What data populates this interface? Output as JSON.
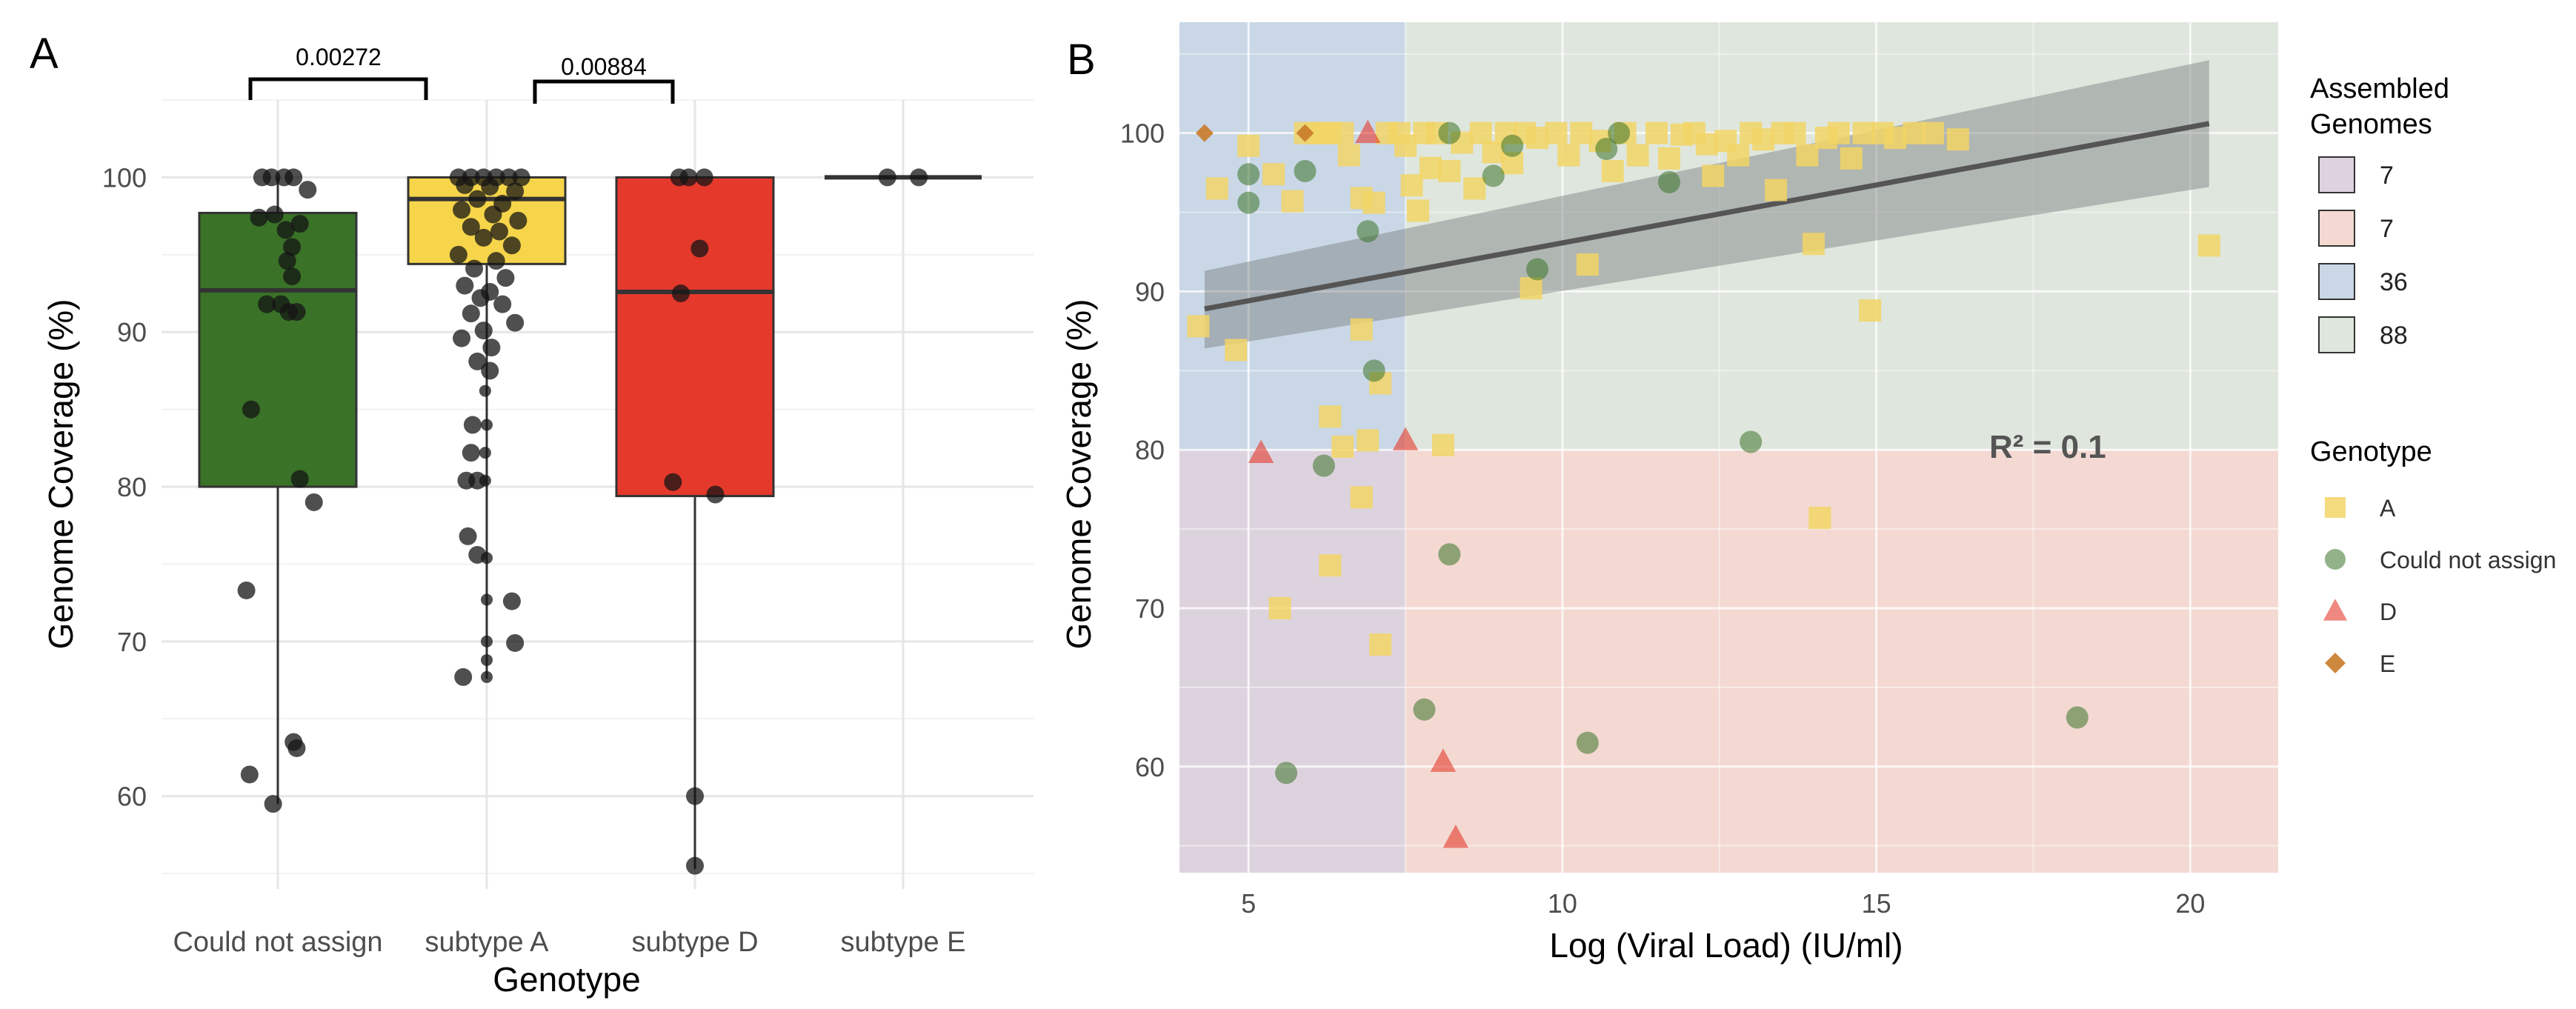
{
  "panel_a": {
    "label": "A",
    "chart_data": {
      "type": "box",
      "xlabel": "Genotype",
      "ylabel": "Genome Coverage (%)",
      "ylim": [
        54,
        105
      ],
      "yticks": [
        60,
        70,
        80,
        90,
        100
      ],
      "categories": [
        "Could not assign",
        "subtype A",
        "subtype D",
        "subtype E"
      ],
      "colors": [
        "#3a7228",
        "#f7d54a",
        "#e5392c",
        "#ffffff"
      ],
      "boxes": [
        {
          "q1": 80.0,
          "median": 92.7,
          "q3": 97.7,
          "lower": 59.5,
          "upper": 100
        },
        {
          "q1": 94.4,
          "median": 98.6,
          "q3": 100,
          "lower": 67.6,
          "upper": 100
        },
        {
          "q1": 79.4,
          "median": 92.6,
          "q3": 100,
          "lower": 55.3,
          "upper": 100
        },
        {
          "q1": 100,
          "median": 100,
          "q3": 100,
          "lower": 100,
          "upper": 100
        }
      ],
      "points": [
        [
          [
            100,
            -0.1
          ],
          [
            100,
            -0.04
          ],
          [
            100,
            0.04
          ],
          [
            100,
            0.1
          ],
          [
            99.2,
            0.19
          ],
          [
            97.6,
            -0.02
          ],
          [
            97.4,
            -0.12
          ],
          [
            97,
            0.14
          ],
          [
            96.6,
            0.05
          ],
          [
            95.5,
            0.09
          ],
          [
            94.6,
            0.06
          ],
          [
            93.6,
            0.09
          ],
          [
            91.8,
            -0.07
          ],
          [
            91.8,
            0.02
          ],
          [
            91.3,
            0.07
          ],
          [
            91.3,
            0.12
          ],
          [
            85,
            -0.17
          ],
          [
            80.5,
            0.14
          ],
          [
            79,
            0.23
          ],
          [
            73.3,
            -0.2
          ],
          [
            63.5,
            0.1
          ],
          [
            63.1,
            0.12
          ],
          [
            61.4,
            -0.18
          ],
          [
            59.5,
            -0.03
          ]
        ],
        [
          [
            100,
            -0.18
          ],
          [
            100,
            -0.1
          ],
          [
            100,
            -0.02
          ],
          [
            100,
            0.06
          ],
          [
            100,
            0.14
          ],
          [
            100,
            0.22
          ],
          [
            99.5,
            -0.14
          ],
          [
            99.4,
            0.02
          ],
          [
            99.1,
            0.18
          ],
          [
            98.6,
            -0.06
          ],
          [
            98.3,
            0.1
          ],
          [
            97.9,
            -0.16
          ],
          [
            97.6,
            0.04
          ],
          [
            97.2,
            0.2
          ],
          [
            96.8,
            -0.1
          ],
          [
            96.5,
            0.08
          ],
          [
            96.1,
            -0.02
          ],
          [
            95.6,
            0.16
          ],
          [
            95,
            -0.18
          ],
          [
            94.6,
            0.06
          ],
          [
            94.1,
            -0.08
          ],
          [
            93.5,
            0.12
          ],
          [
            93,
            -0.14
          ],
          [
            92.6,
            0.02
          ],
          [
            92.2,
            -0.04
          ],
          [
            91.8,
            0.1
          ],
          [
            91.2,
            -0.1
          ],
          [
            90.6,
            0.18
          ],
          [
            90.1,
            -0.02
          ],
          [
            89.6,
            -0.16
          ],
          [
            89,
            0.03
          ],
          [
            88.1,
            -0.06
          ],
          [
            87.5,
            0.02
          ],
          [
            86.2,
            -0.01
          ],
          [
            84,
            -0.09
          ],
          [
            84,
            0.0
          ],
          [
            82.2,
            -0.1
          ],
          [
            82.2,
            -0.01
          ],
          [
            80.4,
            -0.13
          ],
          [
            80.4,
            -0.06
          ],
          [
            80.4,
            -0.01
          ],
          [
            76.8,
            -0.12
          ],
          [
            75.6,
            -0.06
          ],
          [
            75.4,
            0.0
          ],
          [
            72.7,
            0.0
          ],
          [
            72.6,
            0.16
          ],
          [
            70,
            0.0
          ],
          [
            69.9,
            0.18
          ],
          [
            68.8,
            0.0
          ],
          [
            67.7,
            -0.15
          ],
          [
            67.7,
            0.0
          ]
        ],
        [
          [
            100,
            -0.1
          ],
          [
            100,
            -0.04
          ],
          [
            100,
            0.06
          ],
          [
            95.4,
            0.03
          ],
          [
            92.5,
            -0.09
          ],
          [
            80.3,
            -0.14
          ],
          [
            79.5,
            0.13
          ],
          [
            60,
            0.0
          ],
          [
            55.5,
            0.0
          ]
        ],
        [
          [
            100,
            -0.1
          ],
          [
            100,
            0.1
          ]
        ]
      ],
      "pvalues": [
        "0.00272",
        "0.00884"
      ]
    }
  },
  "panel_b": {
    "label": "B",
    "chart_data": {
      "type": "scatter",
      "xlabel": "Log (Viral Load) (IU/ml)",
      "ylabel": "Genome Coverage (%)",
      "xlim": [
        3.9,
        21.4
      ],
      "ylim": [
        53.3,
        107
      ],
      "xticks": [
        5,
        10,
        15,
        20
      ],
      "yticks": [
        60,
        70,
        80,
        90,
        100
      ],
      "regions": [
        {
          "x": [
            3.9,
            7.5
          ],
          "y": [
            80,
            107
          ],
          "color": "#c9d7e6"
        },
        {
          "x": [
            7.5,
            21.4
          ],
          "y": [
            80,
            107
          ],
          "color": "#dfe6dd"
        },
        {
          "x": [
            3.9,
            7.5
          ],
          "y": [
            53.3,
            80
          ],
          "color": "#ddd3de"
        },
        {
          "x": [
            7.5,
            21.4
          ],
          "y": [
            53.3,
            80
          ],
          "color": "#f3d9d2"
        }
      ],
      "regression": {
        "x": [
          4.3,
          20.3
        ],
        "y": [
          88.9,
          100.6
        ],
        "ci_lower": [
          86.4,
          96.6
        ],
        "ci_upper": [
          91.3,
          104.6
        ],
        "annotation": "R² = 0.1"
      },
      "series": [
        {
          "name": "A",
          "shape": "square",
          "color": "#f2d566",
          "points": [
            [
              4.2,
              87.8
            ],
            [
              4.5,
              96.5
            ],
            [
              4.8,
              86.3
            ],
            [
              5.4,
              97.4
            ],
            [
              5.7,
              95.7
            ],
            [
              5.9,
              100
            ],
            [
              6.1,
              100
            ],
            [
              6.2,
              100
            ],
            [
              6.3,
              100
            ],
            [
              6.5,
              100
            ],
            [
              6.6,
              98.6
            ],
            [
              6.8,
              95.9
            ],
            [
              7,
              95.6
            ],
            [
              7.2,
              100
            ],
            [
              7.4,
              100
            ],
            [
              7.5,
              99.2
            ],
            [
              7.6,
              96.7
            ],
            [
              7.7,
              95.1
            ],
            [
              7.8,
              100
            ],
            [
              7.9,
              97.8
            ],
            [
              8,
              100
            ],
            [
              8.2,
              97.6
            ],
            [
              8.4,
              99.4
            ],
            [
              8.6,
              96.5
            ],
            [
              8.7,
              100
            ],
            [
              8.9,
              98.8
            ],
            [
              9.1,
              100
            ],
            [
              9.2,
              98.1
            ],
            [
              9.4,
              100
            ],
            [
              9.5,
              90.2
            ],
            [
              9.6,
              99.7
            ],
            [
              9.9,
              100
            ],
            [
              10.1,
              98.6
            ],
            [
              10.3,
              100
            ],
            [
              10.4,
              91.7
            ],
            [
              10.6,
              99.5
            ],
            [
              10.8,
              97.6
            ],
            [
              11,
              100
            ],
            [
              11.2,
              98.6
            ],
            [
              11.5,
              100
            ],
            [
              11.7,
              98.4
            ],
            [
              11.9,
              99.9
            ],
            [
              12.1,
              100
            ],
            [
              12.3,
              99.3
            ],
            [
              12.4,
              97.3
            ],
            [
              12.6,
              99.5
            ],
            [
              12.8,
              98.6
            ],
            [
              13,
              100
            ],
            [
              13.2,
              99.6
            ],
            [
              13.4,
              96.4
            ],
            [
              13.5,
              100
            ],
            [
              13.7,
              100
            ],
            [
              13.9,
              98.6
            ],
            [
              14,
              93
            ],
            [
              14.1,
              75.7
            ],
            [
              14.2,
              99.7
            ],
            [
              14.4,
              100
            ],
            [
              14.6,
              98.4
            ],
            [
              14.8,
              100
            ],
            [
              14.9,
              88.8
            ],
            [
              15.1,
              100
            ],
            [
              15.3,
              99.7
            ],
            [
              15.6,
              100
            ],
            [
              15.9,
              100
            ],
            [
              16.3,
              99.6
            ],
            [
              20.3,
              92.9
            ],
            [
              5,
              99.2
            ],
            [
              6.3,
              82.1
            ],
            [
              6.3,
              72.7
            ],
            [
              5.5,
              70
            ],
            [
              6.5,
              80.2
            ],
            [
              6.8,
              77
            ],
            [
              6.8,
              87.6
            ],
            [
              6.9,
              80.6
            ],
            [
              7.1,
              84.2
            ],
            [
              7.1,
              67.7
            ],
            [
              8.1,
              80.3
            ]
          ]
        },
        {
          "name": "Could not assign",
          "shape": "circle",
          "color": "#3a7228",
          "points": [
            [
              5,
              97.4
            ],
            [
              5,
              95.6
            ],
            [
              5.9,
              97.6
            ],
            [
              6.9,
              93.8
            ],
            [
              7,
              85
            ],
            [
              6.2,
              79
            ],
            [
              5.6,
              59.6
            ],
            [
              7.8,
              63.6
            ],
            [
              8.2,
              73.4
            ],
            [
              8.2,
              100
            ],
            [
              8.9,
              97.3
            ],
            [
              9.2,
              99.2
            ],
            [
              9.6,
              91.4
            ],
            [
              10.4,
              61.5
            ],
            [
              10.7,
              99
            ],
            [
              10.9,
              100
            ],
            [
              11.7,
              96.9
            ],
            [
              13,
              80.5
            ],
            [
              18.2,
              63.1
            ]
          ]
        },
        {
          "name": "D",
          "shape": "triangle",
          "color": "#e5392c",
          "points": [
            [
              6.9,
              100
            ],
            [
              5.2,
              79.8
            ],
            [
              7.5,
              80.6
            ],
            [
              8.1,
              60.3
            ],
            [
              8.3,
              55.5
            ]
          ]
        },
        {
          "name": "E",
          "shape": "diamond",
          "color": "#c97b28",
          "points": [
            [
              4.3,
              100
            ],
            [
              5.9,
              100
            ]
          ]
        }
      ],
      "legend_assembled": {
        "title": [
          "Assembled",
          "Genomes"
        ],
        "items": [
          {
            "label": "7",
            "color": "#ddd3de"
          },
          {
            "label": "7",
            "color": "#f3d9d2"
          },
          {
            "label": "36",
            "color": "#c9d7e6"
          },
          {
            "label": "88",
            "color": "#dfe6dd"
          }
        ]
      },
      "legend_genotype": {
        "title": "Genotype",
        "items": [
          {
            "label": "A",
            "shape": "square",
            "color": "#f2d566"
          },
          {
            "label": "Could not assign",
            "shape": "circle",
            "color": "#3a7228"
          },
          {
            "label": "D",
            "shape": "triangle",
            "color": "#e5392c"
          },
          {
            "label": "E",
            "shape": "diamond",
            "color": "#c97b28"
          }
        ]
      }
    }
  }
}
